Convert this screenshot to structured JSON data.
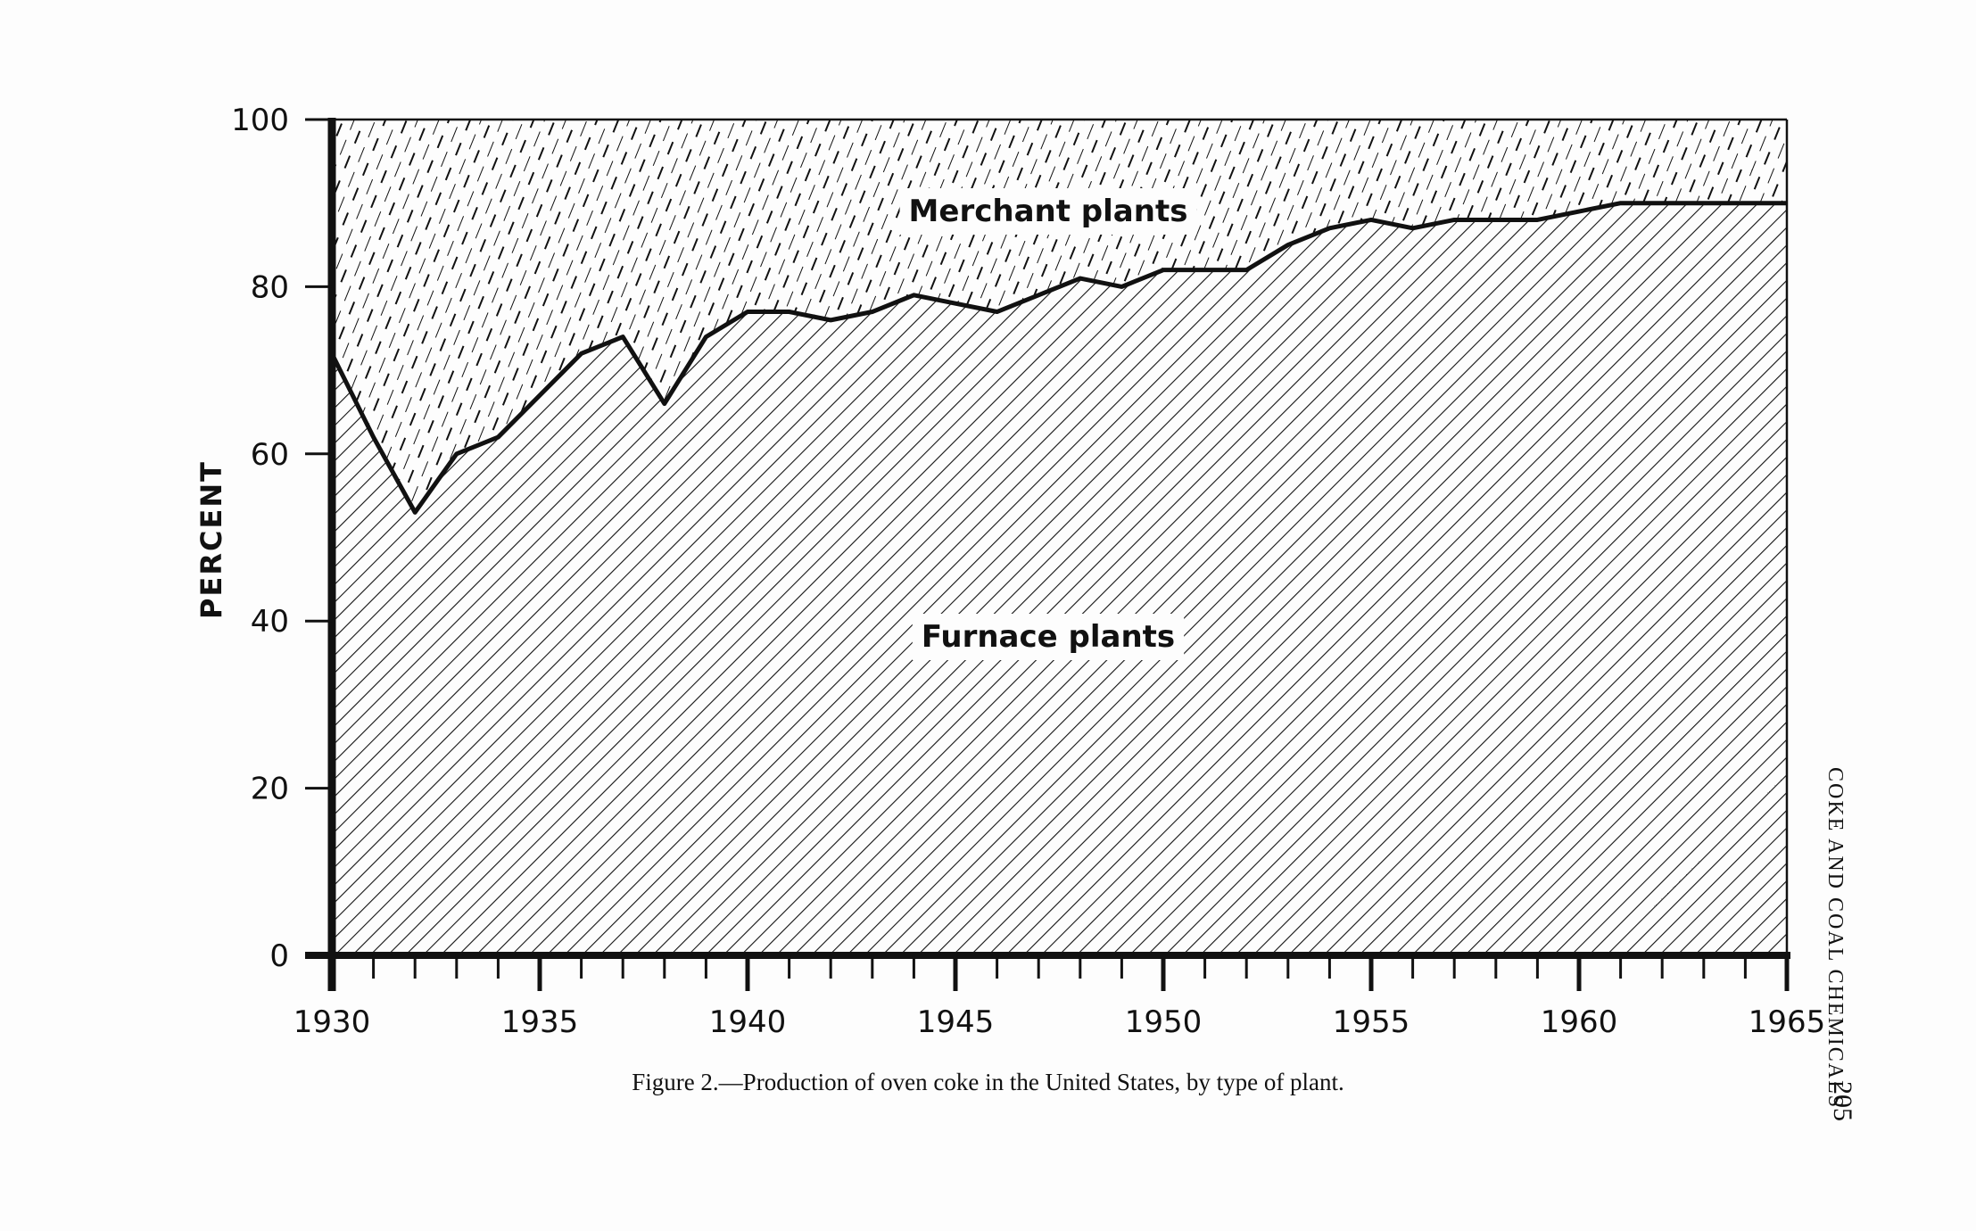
{
  "page": {
    "running_header": "COKE AND COAL CHEMICALS",
    "page_number": "205",
    "caption": "Figure 2.—Production of oven coke in the United States, by type of plant."
  },
  "chart_data": {
    "type": "area",
    "stacked": true,
    "title": "",
    "xlabel": "",
    "ylabel": "PERCENT",
    "xlim": [
      1930,
      1965
    ],
    "ylim": [
      0,
      100
    ],
    "x_ticks": [
      "1930",
      "1935",
      "1940",
      "1945",
      "1950",
      "1955",
      "1960",
      "1965"
    ],
    "y_ticks": [
      "0",
      "20",
      "40",
      "60",
      "80",
      "100"
    ],
    "x": [
      1930,
      1931,
      1932,
      1933,
      1934,
      1935,
      1936,
      1937,
      1938,
      1939,
      1940,
      1941,
      1942,
      1943,
      1944,
      1945,
      1946,
      1947,
      1948,
      1949,
      1950,
      1951,
      1952,
      1953,
      1954,
      1955,
      1956,
      1957,
      1958,
      1959,
      1960,
      1961,
      1962,
      1963,
      1964,
      1965
    ],
    "series": [
      {
        "name": "Furnace plants",
        "pattern": "dense diagonal hatch",
        "values": [
          72,
          62,
          53,
          60,
          62,
          67,
          72,
          74,
          66,
          74,
          77,
          77,
          76,
          77,
          79,
          78,
          77,
          79,
          81,
          80,
          82,
          82,
          82,
          85,
          87,
          88,
          87,
          88,
          88,
          88,
          89,
          90,
          90,
          90,
          90,
          90
        ]
      },
      {
        "name": "Merchant plants",
        "pattern": "dashed diagonal hatch",
        "values": [
          28,
          38,
          47,
          40,
          38,
          33,
          28,
          26,
          34,
          26,
          23,
          23,
          24,
          23,
          21,
          22,
          23,
          21,
          19,
          20,
          18,
          18,
          18,
          15,
          13,
          12,
          13,
          12,
          12,
          12,
          11,
          10,
          10,
          10,
          10,
          10
        ]
      }
    ],
    "colors": {
      "ink": "#111111",
      "paper": "#fdfdfd"
    }
  }
}
